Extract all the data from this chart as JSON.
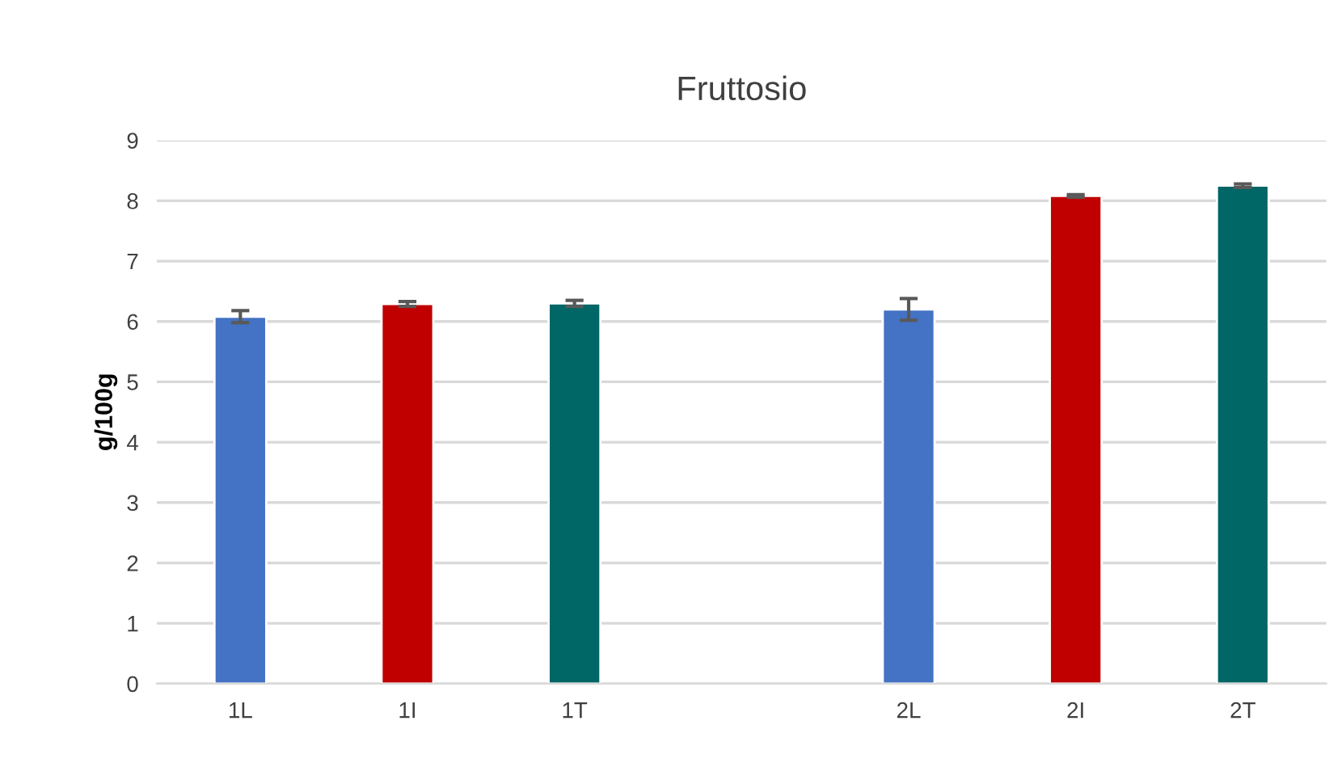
{
  "chart_data": {
    "type": "bar",
    "title": "Fruttosio",
    "ylabel": "g/100g",
    "categories": [
      "1L",
      "1I",
      "1T",
      null,
      "2L",
      "2I",
      "2T"
    ],
    "values": [
      6.08,
      6.29,
      6.3,
      null,
      6.2,
      8.08,
      8.25
    ],
    "errors": [
      0.1,
      0.04,
      0.05,
      null,
      0.18,
      0.02,
      0.03
    ],
    "colors": [
      "#4472c4",
      "#c00000",
      "#006666",
      "#ffffff",
      "#4472c4",
      "#c00000",
      "#006666"
    ],
    "ylim": [
      0,
      9
    ],
    "yticks": [
      0,
      1,
      2,
      3,
      4,
      5,
      6,
      7,
      8,
      9
    ],
    "grid": "y"
  }
}
